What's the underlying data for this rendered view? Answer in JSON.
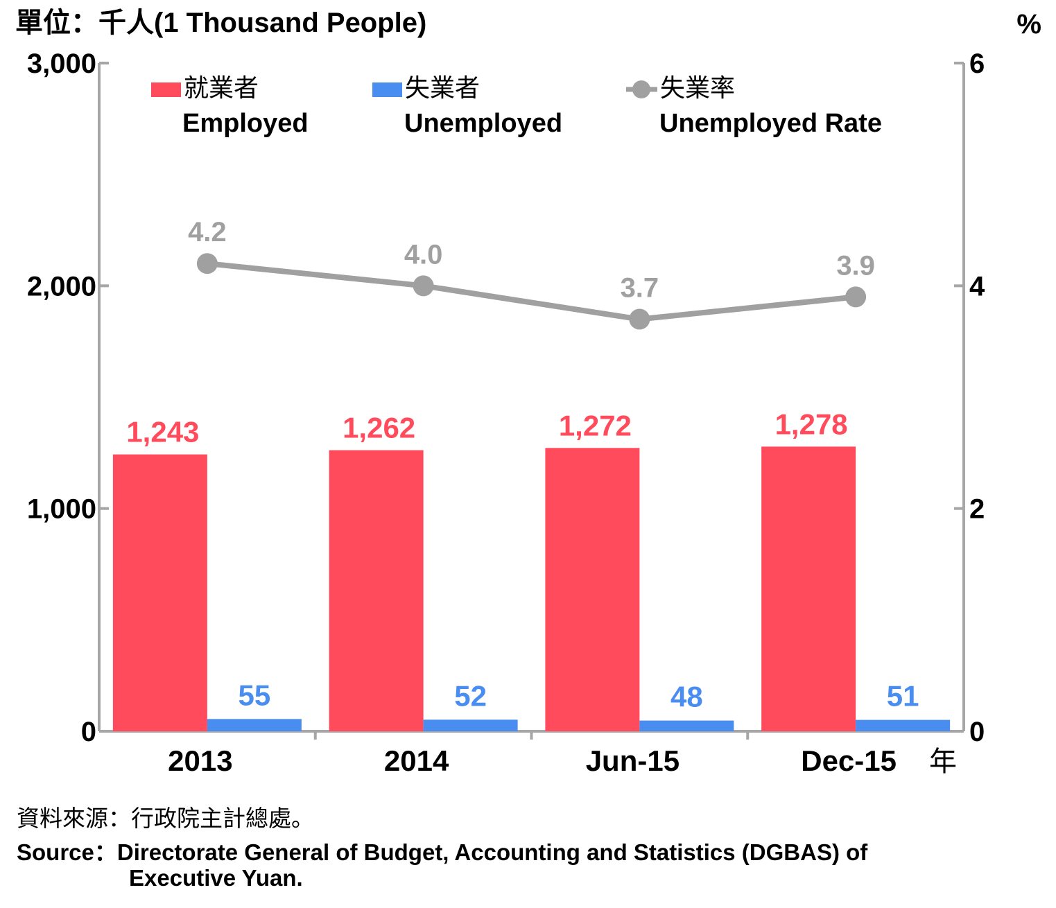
{
  "chart_data": {
    "type": "bar",
    "unit_label": "單位：千人(1 Thousand People)",
    "right_unit_label": "%",
    "categories": [
      "2013",
      "2014",
      "Jun-15",
      "Dec-15"
    ],
    "x_suffix": "年",
    "left_axis": {
      "ylim": [
        0,
        3000
      ],
      "ticks": [
        "0",
        "1,000",
        "2,000",
        "3,000"
      ],
      "tick_values": [
        0,
        1000,
        2000,
        3000
      ]
    },
    "right_axis": {
      "ylim": [
        0,
        6
      ],
      "ticks": [
        "0",
        "2",
        "4",
        "6"
      ],
      "tick_values": [
        0,
        2,
        4,
        6
      ]
    },
    "series": [
      {
        "name_cn": "就業者",
        "name_en": "Employed",
        "kind": "bar",
        "axis": "left",
        "color": "#ff4b5c",
        "values": [
          1243,
          1262,
          1272,
          1278
        ],
        "labels": [
          "1,243",
          "1,262",
          "1,272",
          "1,278"
        ]
      },
      {
        "name_cn": "失業者",
        "name_en": "Unemployed",
        "kind": "bar",
        "axis": "left",
        "color": "#4a8df0",
        "values": [
          55,
          52,
          48,
          51
        ],
        "labels": [
          "55",
          "52",
          "48",
          "51"
        ]
      },
      {
        "name_cn": "失業率",
        "name_en": "Unemployed Rate",
        "kind": "line",
        "axis": "right",
        "color": "#a0a0a0",
        "values": [
          4.2,
          4.0,
          3.7,
          3.9
        ],
        "labels": [
          "4.2",
          "4.0",
          "3.7",
          "3.9"
        ]
      }
    ],
    "grid": false,
    "legend_position": "top"
  },
  "source": {
    "cn": "資料來源：行政院主計總處。",
    "en_line1": "Source：Directorate General of Budget, Accounting and Statistics (DGBAS) of",
    "en_line2": "Executive Yuan."
  },
  "colors": {
    "axis": "#a6a6a6"
  }
}
